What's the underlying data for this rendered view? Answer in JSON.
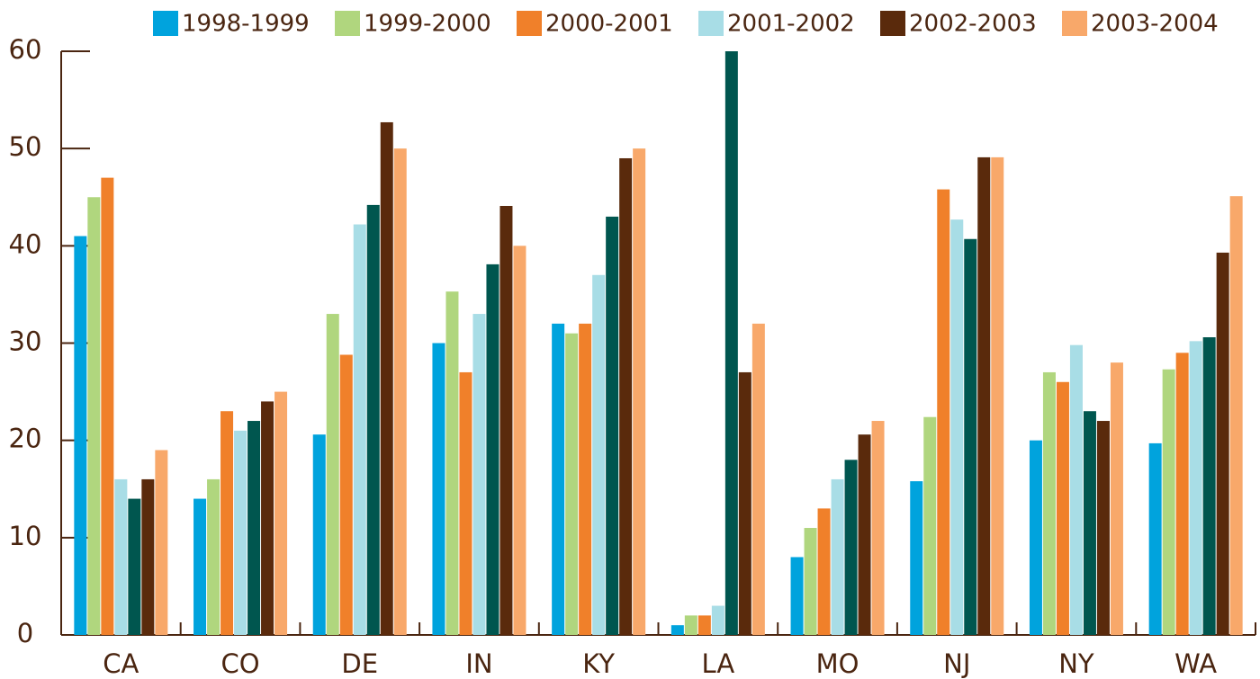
{
  "chart_data": {
    "type": "bar",
    "categories": [
      "CA",
      "CO",
      "DE",
      "IN",
      "KY",
      "LA",
      "MO",
      "NJ",
      "NY",
      "WA"
    ],
    "series": [
      {
        "name": "1998-1999",
        "color": "#00a3dd",
        "values": [
          41,
          14,
          20.6,
          30,
          32,
          1,
          8,
          15.8,
          20,
          19.7
        ]
      },
      {
        "name": "1999-2000",
        "color": "#b0d67e",
        "values": [
          45,
          16,
          33,
          35.3,
          31,
          2,
          11,
          22.4,
          27,
          27.3
        ]
      },
      {
        "name": "2000-2001",
        "color": "#f0802a",
        "values": [
          47,
          23,
          28.8,
          27,
          32,
          2,
          13,
          45.8,
          26,
          29
        ]
      },
      {
        "name": "2001-2002",
        "color": "#a8dde6",
        "values": [
          16,
          21,
          42.2,
          33,
          37,
          3,
          16,
          42.7,
          29.8,
          30.2
        ]
      },
      {
        "color": "#00564f",
        "values": [
          14,
          22,
          44.2,
          38.1,
          43,
          60,
          18,
          40.7,
          23,
          30.6
        ]
      },
      {
        "name": "2002-2003",
        "color": "#5a2a0c",
        "values": [
          16,
          24,
          52.7,
          44.1,
          49,
          27,
          20.6,
          49.1,
          22,
          39.3
        ]
      },
      {
        "name": "2003-2004",
        "color": "#f8a86a",
        "values": [
          19,
          25,
          50,
          40,
          50,
          32,
          22,
          49.1,
          28,
          45.1
        ]
      }
    ],
    "ylim": [
      0,
      60
    ],
    "yticks": [
      0,
      10,
      20,
      30,
      40,
      50,
      60
    ],
    "legend": "top"
  }
}
